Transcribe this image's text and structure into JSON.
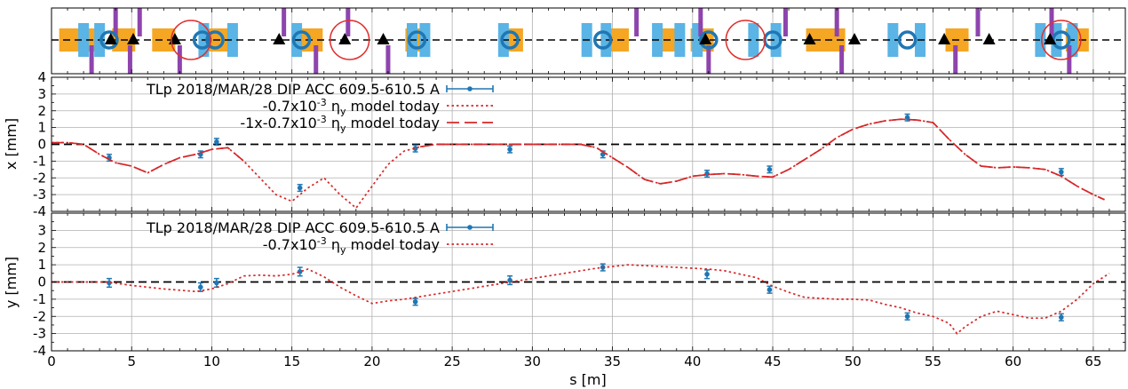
{
  "chart_data": [
    {
      "type": "lattice",
      "title": "",
      "xlim": [
        0,
        67
      ],
      "elements": {
        "quadrupole_blue": [
          2,
          3,
          9.5,
          11.3,
          15.3,
          22.5,
          23.3,
          28.2,
          33.4,
          34.6,
          37.8,
          39.2,
          40.3,
          43.8,
          45.2,
          52.5,
          54.2,
          61.7,
          62.7,
          63.7
        ],
        "quadrupole_orange": [
          1.2,
          2.5,
          4.5,
          7,
          10.5,
          16.2,
          22.8,
          28.7,
          35.3,
          38.8,
          40.6,
          47.8,
          48.8,
          56.5,
          64
        ],
        "bpm_circle": [
          3.6,
          9.4,
          10.2,
          15.6,
          22.8,
          28.6,
          34.4,
          41,
          45,
          53.4,
          63
        ],
        "monitor_triangle": [
          3.7,
          5.1,
          7.7,
          14.2,
          18.3,
          20.7,
          40.8,
          47.3,
          50.1,
          55.7,
          58.5,
          62.3
        ],
        "corrector_up": [
          4,
          5.5,
          14.5,
          18.5,
          36.5,
          40.5,
          45.8,
          49,
          57.8,
          62.4
        ],
        "corrector_down": [
          2.5,
          4.9,
          8,
          16.5,
          21,
          41,
          49.3,
          56.4,
          63.5
        ],
        "highlight_circle": [
          8.7,
          18.6,
          43.3,
          63
        ]
      }
    },
    {
      "type": "line",
      "xlabel": "",
      "ylabel": "x [mm]",
      "xlim": [
        0,
        67
      ],
      "ylim": [
        -4,
        4
      ],
      "yticks": [
        "4",
        "3",
        "2",
        "1",
        "0",
        "-1",
        "-2",
        "-3",
        "-4"
      ],
      "grid": true,
      "legend_position": "top-center",
      "series": [
        {
          "name": "TLp 2018/MAR/28 DIP ACC 609.5-610.5 A",
          "kind": "errorbar",
          "color": "#1f77b4",
          "x": [
            3.6,
            9.3,
            10.3,
            15.5,
            22.7,
            28.6,
            34.4,
            40.9,
            44.8,
            53.4,
            63
          ],
          "y": [
            -0.8,
            -0.6,
            0.15,
            -2.6,
            -0.25,
            -0.3,
            -0.6,
            -1.75,
            -1.5,
            1.6,
            -1.65
          ],
          "yerr": [
            0.2,
            0.2,
            0.2,
            0.2,
            0.2,
            0.2,
            0.2,
            0.2,
            0.2,
            0.2,
            0.2
          ]
        },
        {
          "name": "-0.7x10-3 ηy model today",
          "kind": "dotted",
          "color": "#d62728",
          "x": [
            0,
            1,
            2,
            3,
            4,
            5,
            6,
            7,
            8,
            9,
            10,
            11,
            12,
            13,
            14,
            15,
            16,
            17,
            18,
            19,
            20,
            21,
            22,
            23,
            24,
            25,
            26,
            27,
            28,
            29,
            30,
            31,
            32,
            33,
            34,
            35,
            36,
            37,
            38,
            39,
            40,
            41,
            42,
            43,
            44,
            45,
            46,
            47,
            48,
            49,
            50,
            51,
            52,
            53,
            54,
            55,
            56,
            57,
            58,
            59,
            60,
            61,
            62,
            63,
            64,
            65,
            65.7
          ],
          "y": [
            0.1,
            0.1,
            0,
            -0.6,
            -1.1,
            -1.3,
            -1.7,
            -1.2,
            -0.8,
            -0.6,
            -0.3,
            -0.2,
            -1,
            -2,
            -3,
            -3.4,
            -2.6,
            -2,
            -3,
            -3.8,
            -2.5,
            -1.2,
            -0.4,
            -0.15,
            0,
            0,
            0,
            0,
            0,
            0,
            0,
            0,
            0,
            0,
            -0.2,
            -0.8,
            -1.4,
            -2.1,
            -2.35,
            -2.2,
            -1.9,
            -1.8,
            -1.75,
            -1.8,
            -1.9,
            -1.95,
            -1.5,
            -0.9,
            -0.3,
            0.4,
            0.9,
            1.2,
            1.4,
            1.5,
            1.45,
            1.3,
            0.3,
            -0.6,
            -1.3,
            -1.4,
            -1.35,
            -1.4,
            -1.5,
            -1.9,
            -2.5,
            -3,
            -3.3
          ]
        },
        {
          "name": "-1x-0.7x10-3 ηy model today",
          "kind": "dashed",
          "color": "#d62728",
          "x": [
            0,
            1,
            2,
            3,
            4,
            5,
            6,
            7,
            8,
            9,
            10,
            11,
            12,
            13,
            14,
            15,
            16,
            17,
            18,
            19,
            20,
            21,
            22,
            23,
            24,
            25,
            26,
            27,
            28,
            29,
            30,
            31,
            32,
            33,
            34,
            35,
            36,
            37,
            38,
            39,
            40,
            41,
            42,
            43,
            44,
            45,
            46,
            47,
            48,
            49,
            50,
            51,
            52,
            53,
            54,
            55,
            56,
            57,
            58,
            59,
            60,
            61,
            62,
            63,
            64,
            65,
            65.7
          ],
          "y": [
            0.1,
            0.1,
            0,
            -0.6,
            -1.1,
            -1.3,
            -1.7,
            -1.2,
            -0.8,
            -0.6,
            -0.3,
            -0.2,
            -1,
            -2,
            -3,
            -3.4,
            -2.6,
            -2,
            -3,
            -3.8,
            -2.5,
            -1.2,
            -0.4,
            -0.15,
            0,
            0,
            0,
            0,
            0,
            0,
            0,
            0,
            0,
            0,
            -0.2,
            -0.8,
            -1.4,
            -2.1,
            -2.35,
            -2.2,
            -1.9,
            -1.8,
            -1.75,
            -1.8,
            -1.9,
            -1.95,
            -1.5,
            -0.9,
            -0.3,
            0.4,
            0.9,
            1.2,
            1.4,
            1.5,
            1.45,
            1.3,
            0.3,
            -0.6,
            -1.3,
            -1.4,
            -1.35,
            -1.4,
            -1.5,
            -1.9,
            -2.5,
            -3,
            -3.3
          ],
          "visible_ranges": [
            [
              0,
              12
            ],
            [
              22.5,
              66
            ]
          ]
        }
      ]
    },
    {
      "type": "line",
      "xlabel": "s [m]",
      "ylabel": "y [mm]",
      "xlim": [
        0,
        67
      ],
      "ylim": [
        -4,
        4
      ],
      "xticks": [
        "0",
        "5",
        "10",
        "15",
        "20",
        "25",
        "30",
        "35",
        "40",
        "45",
        "50",
        "55",
        "60",
        "65"
      ],
      "yticks": [
        "3",
        "2",
        "1",
        "0",
        "-1",
        "-2",
        "-3",
        "-4"
      ],
      "grid": true,
      "legend_position": "top-center",
      "series": [
        {
          "name": "TLp 2018/MAR/28 DIP ACC 609.5-610.5 A",
          "kind": "errorbar",
          "color": "#1f77b4",
          "x": [
            3.6,
            9.3,
            10.3,
            15.5,
            22.7,
            28.6,
            34.4,
            40.9,
            44.8,
            53.4,
            63
          ],
          "y": [
            -0.05,
            -0.3,
            -0.05,
            0.6,
            -1.15,
            0.1,
            0.85,
            0.45,
            -0.45,
            -2,
            -2.05
          ],
          "yerr": [
            0.25,
            0.25,
            0.25,
            0.25,
            0.2,
            0.25,
            0.2,
            0.25,
            0.2,
            0.2,
            0.2
          ]
        },
        {
          "name": "-0.7x10-3 ηy model today",
          "kind": "dotted",
          "color": "#d62728",
          "x": [
            0,
            2,
            3.5,
            5,
            7,
            9,
            10,
            11,
            12,
            13,
            14,
            15,
            16,
            17,
            18,
            19,
            20,
            21,
            22,
            23,
            24,
            25,
            26,
            27,
            28,
            29,
            30,
            31,
            32,
            33,
            34,
            35,
            36,
            37,
            38,
            39,
            40,
            41,
            42,
            43,
            44,
            45,
            46,
            47,
            48,
            49,
            50,
            51,
            52,
            53,
            54,
            55,
            56,
            56.5,
            57,
            58,
            59,
            60,
            61,
            62,
            63,
            64,
            65,
            66
          ],
          "y": [
            0,
            0,
            0,
            -0.2,
            -0.4,
            -0.55,
            -0.4,
            -0.1,
            0.35,
            0.4,
            0.35,
            0.45,
            0.75,
            0.3,
            -0.3,
            -0.8,
            -1.25,
            -1.1,
            -1,
            -0.85,
            -0.7,
            -0.55,
            -0.4,
            -0.25,
            -0.1,
            0.05,
            0.2,
            0.35,
            0.5,
            0.65,
            0.8,
            0.9,
            1,
            0.95,
            0.9,
            0.85,
            0.8,
            0.75,
            0.65,
            0.45,
            0.25,
            -0.25,
            -0.6,
            -0.9,
            -0.95,
            -1,
            -1,
            -1.05,
            -1.3,
            -1.5,
            -1.8,
            -2,
            -2.4,
            -3,
            -2.6,
            -2,
            -1.7,
            -1.9,
            -2.1,
            -2.1,
            -1.7,
            -1,
            -0.1,
            0.5
          ]
        }
      ]
    }
  ]
}
